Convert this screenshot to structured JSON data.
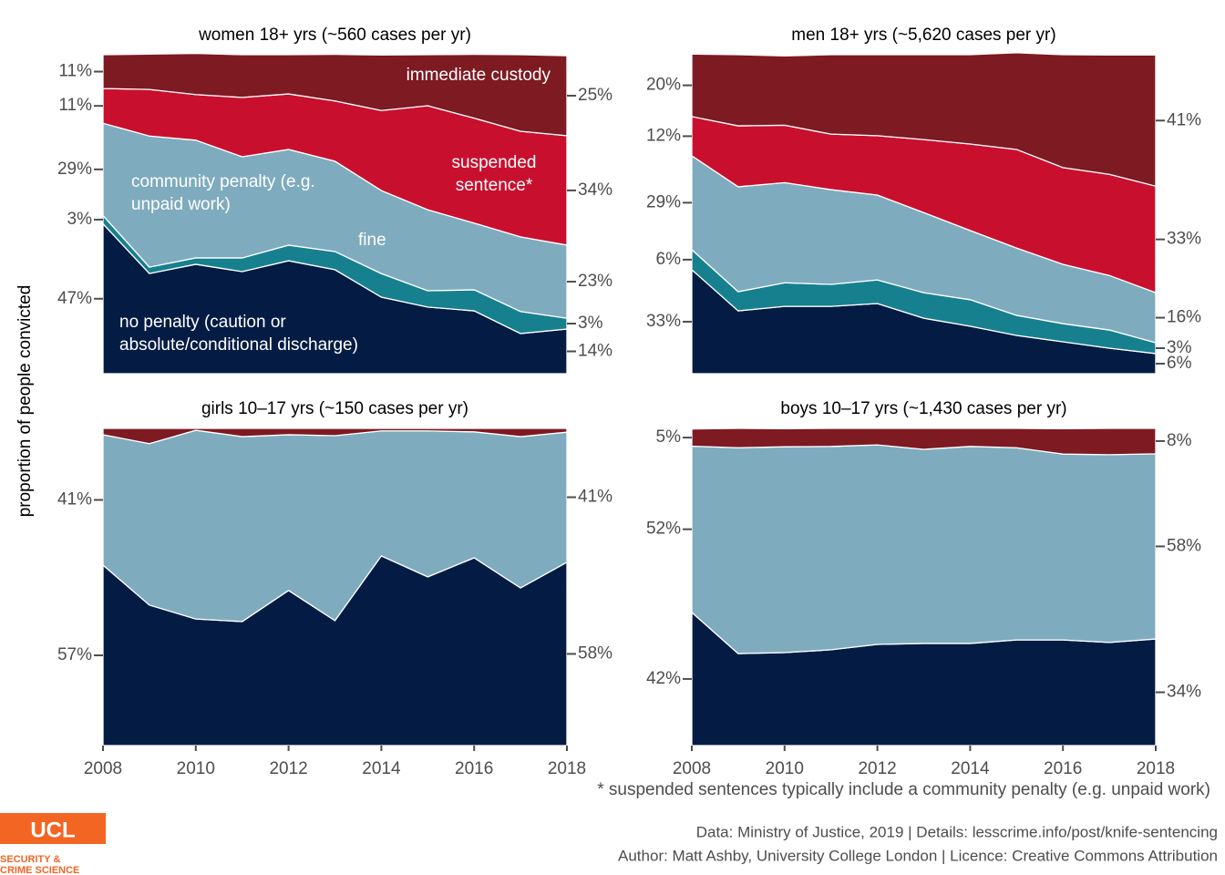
{
  "chart_data": [
    {
      "type": "area",
      "title": "women 18+ yrs (~560 cases per yr)",
      "x": [
        2008,
        2009,
        2010,
        2011,
        2012,
        2013,
        2014,
        2015,
        2016,
        2017,
        2018
      ],
      "xlim": [
        2008,
        2018
      ],
      "ylim": [
        0,
        100
      ],
      "series": [
        {
          "name": "no penalty (caution or absolute/conditional discharge)",
          "color": "#041c44",
          "values": [
            47.0,
            31.4,
            34.3,
            32.0,
            35.4,
            32.6,
            24.0,
            20.9,
            19.7,
            12.6,
            14.0
          ],
          "value_labels": [
            "47%",
            null,
            null,
            null,
            null,
            null,
            null,
            null,
            null,
            null,
            "14%"
          ]
        },
        {
          "name": "fine",
          "color": "#17808f",
          "values": [
            2.6,
            2.0,
            2.0,
            4.3,
            4.9,
            5.7,
            7.4,
            5.1,
            6.6,
            6.9,
            3.4
          ],
          "value_labels": [
            "3%",
            null,
            null,
            null,
            null,
            null,
            null,
            null,
            null,
            null,
            "3%"
          ]
        },
        {
          "name": "community penalty (e.g. unpaid work)",
          "color": "#7fabbe",
          "values": [
            28.9,
            41.1,
            36.9,
            31.7,
            30.0,
            28.3,
            26.0,
            25.4,
            20.9,
            23.4,
            22.9
          ],
          "value_labels": [
            "29%",
            null,
            null,
            null,
            null,
            null,
            null,
            null,
            null,
            null,
            "23%"
          ]
        },
        {
          "name": "suspended sentence*",
          "color": "#c8102e",
          "values": [
            10.9,
            14.6,
            14.3,
            18.6,
            17.4,
            18.9,
            25.1,
            32.6,
            32.9,
            33.1,
            34.3
          ],
          "value_labels": [
            "11%",
            null,
            null,
            null,
            null,
            null,
            null,
            null,
            null,
            null,
            "34%"
          ]
        },
        {
          "name": "immediate custody",
          "color": "#7d1a22",
          "values": [
            10.6,
            11.1,
            12.9,
            13.4,
            12.3,
            14.6,
            17.4,
            16.0,
            20.0,
            24.0,
            25.1
          ],
          "value_labels": [
            "11%",
            null,
            null,
            null,
            null,
            null,
            null,
            null,
            null,
            null,
            "25%"
          ]
        }
      ]
    },
    {
      "type": "area",
      "title": "men 18+ yrs (~5,620 cases per yr)",
      "x": [
        2008,
        2009,
        2010,
        2011,
        2012,
        2013,
        2014,
        2015,
        2016,
        2017,
        2018
      ],
      "xlim": [
        2008,
        2018
      ],
      "ylim": [
        0,
        100
      ],
      "series": [
        {
          "color": "#041c44",
          "values": [
            32.6,
            19.7,
            21.1,
            21.1,
            22.0,
            17.4,
            14.9,
            12.0,
            10.0,
            8.0,
            6.3
          ],
          "value_labels": [
            "33%",
            null,
            null,
            null,
            null,
            null,
            null,
            null,
            null,
            null,
            "6%"
          ]
        },
        {
          "color": "#17808f",
          "values": [
            6.3,
            6.0,
            7.4,
            6.9,
            7.4,
            8.0,
            8.3,
            6.3,
            5.7,
            5.7,
            3.4
          ],
          "value_labels": [
            "6%",
            null,
            null,
            null,
            null,
            null,
            null,
            null,
            null,
            null,
            "3%"
          ]
        },
        {
          "color": "#7fabbe",
          "values": [
            29.4,
            32.9,
            31.4,
            29.7,
            26.6,
            25.1,
            21.7,
            21.1,
            18.6,
            17.1,
            15.7
          ],
          "value_labels": [
            "29%",
            null,
            null,
            null,
            null,
            null,
            null,
            null,
            null,
            null,
            "16%"
          ]
        },
        {
          "color": "#c8102e",
          "values": [
            12.3,
            19.1,
            18.0,
            17.4,
            18.6,
            22.9,
            27.1,
            30.9,
            30.3,
            31.7,
            33.4
          ],
          "value_labels": [
            "12%",
            null,
            null,
            null,
            null,
            null,
            null,
            null,
            null,
            null,
            "33%"
          ]
        },
        {
          "color": "#7d1a22",
          "values": [
            19.6,
            22.3,
            21.7,
            24.9,
            25.4,
            26.6,
            28.0,
            30.3,
            35.4,
            37.4,
            41.1
          ],
          "value_labels": [
            "20%",
            null,
            null,
            null,
            null,
            null,
            null,
            null,
            null,
            null,
            "41%"
          ]
        }
      ]
    },
    {
      "type": "area",
      "title": "girls 10–17 yrs (~150 cases per yr)",
      "x": [
        2008,
        2009,
        2010,
        2011,
        2012,
        2013,
        2014,
        2015,
        2016,
        2017,
        2018
      ],
      "xlim": [
        2008,
        2018
      ],
      "ylim": [
        0,
        100
      ],
      "xticks": [
        2008,
        2010,
        2012,
        2014,
        2016,
        2018
      ],
      "series": [
        {
          "color": "#041c44",
          "values": [
            56.9,
            44.3,
            39.9,
            39.1,
            48.9,
            39.4,
            59.8,
            53.2,
            59.2,
            49.7,
            57.8
          ],
          "value_labels": [
            "57%",
            null,
            null,
            null,
            null,
            null,
            null,
            null,
            null,
            null,
            "58%"
          ]
        },
        {
          "color": "#7fabbe",
          "values": [
            41.1,
            50.9,
            59.5,
            58.3,
            49.1,
            58.3,
            39.4,
            46.0,
            39.7,
            47.7,
            41.0
          ],
          "value_labels": [
            "41%",
            null,
            null,
            null,
            null,
            null,
            null,
            null,
            null,
            null,
            "41%"
          ]
        },
        {
          "color": "#7d1a22",
          "values": [
            2.0,
            4.8,
            0.6,
            2.6,
            2.0,
            2.3,
            0.8,
            0.8,
            1.1,
            2.6,
            1.2
          ]
        }
      ]
    },
    {
      "type": "area",
      "title": "boys 10–17 yrs (~1,430 cases per yr)",
      "x": [
        2008,
        2009,
        2010,
        2011,
        2012,
        2013,
        2014,
        2015,
        2016,
        2017,
        2018
      ],
      "xlim": [
        2008,
        2018
      ],
      "ylim": [
        0,
        100
      ],
      "xticks": [
        2008,
        2010,
        2012,
        2014,
        2016,
        2018
      ],
      "series": [
        {
          "color": "#041c44",
          "values": [
            42.0,
            29.0,
            29.3,
            30.2,
            31.9,
            32.2,
            32.2,
            33.3,
            33.3,
            32.5,
            33.6
          ],
          "value_labels": [
            "42%",
            null,
            null,
            null,
            null,
            null,
            null,
            null,
            null,
            null,
            "34%"
          ]
        },
        {
          "color": "#7fabbe",
          "values": [
            52.4,
            64.9,
            64.9,
            64.1,
            62.9,
            61.2,
            62.1,
            60.6,
            58.6,
            59.2,
            58.4
          ],
          "value_labels": [
            "52%",
            null,
            null,
            null,
            null,
            null,
            null,
            null,
            null,
            null,
            "58%"
          ]
        },
        {
          "color": "#7d1a22",
          "values": [
            5.4,
            6.1,
            5.7,
            5.7,
            5.2,
            6.6,
            5.7,
            6.1,
            8.0,
            8.3,
            8.0
          ],
          "value_labels": [
            "5%",
            null,
            null,
            null,
            null,
            null,
            null,
            null,
            null,
            null,
            "8%"
          ]
        }
      ]
    }
  ],
  "y_axis_label": "proportion of people convicted",
  "footnote": "* suspended sentences typically include a community penalty (e.g. unpaid work)",
  "source": "Data: Ministry of Justice, 2019 |  Details: lesscrime.info/post/knife-sentencing",
  "author": "Author: Matt Ashby, University College London |  Licence: Creative Commons Attribution",
  "logo": {
    "name": "UCL",
    "line1": "SECURITY &",
    "line2": "CRIME SCIENCE"
  }
}
